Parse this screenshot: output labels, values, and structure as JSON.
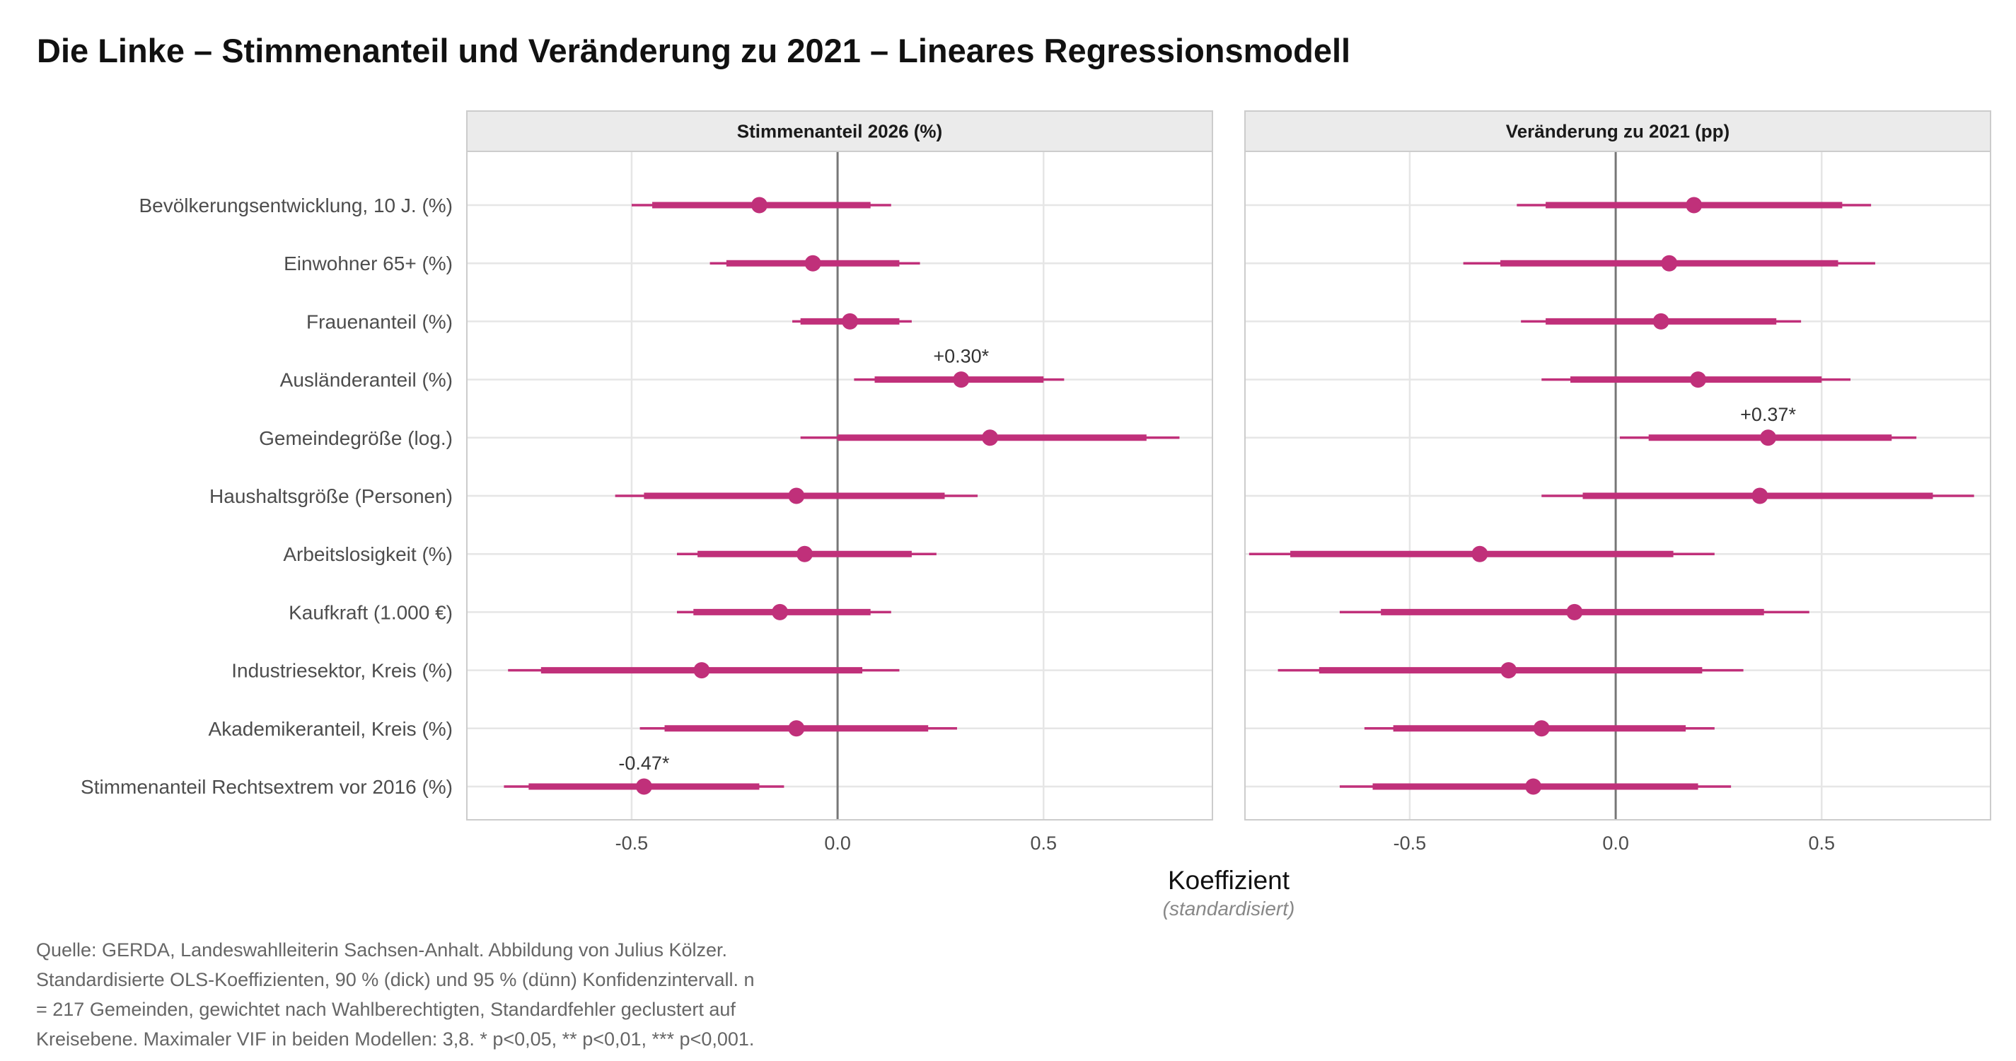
{
  "title": "Die Linke – Stimmenanteil und Veränderung zu 2021 – Lineares Regressionsmodell",
  "chart_data": {
    "type": "coefficient-plot",
    "xlabel": "Koeffizient",
    "xlabel_sub": "(standardisiert)",
    "xlim": [
      -0.9,
      0.91
    ],
    "xticks": [
      -0.5,
      0.0,
      0.5
    ],
    "xtick_labels": [
      "-0.5",
      "0.0",
      "0.5"
    ],
    "zero_line": 0,
    "grid": true,
    "point_color": "#c0307a",
    "terms": [
      "Bevölkerungsentwicklung, 10 J. (%)",
      "Einwohner 65+ (%)",
      "Frauenanteil (%)",
      "Ausländeranteil (%)",
      "Gemeindegröße (log.)",
      "Haushaltsgröße (Personen)",
      "Arbeitslosigkeit (%)",
      "Kaufkraft (1.000 €)",
      "Industriesektor, Kreis (%)",
      "Akademikeranteil, Kreis (%)",
      "Stimmenanteil Rechtsextrem vor 2016 (%)"
    ],
    "panels": [
      {
        "name": "Stimmenanteil 2026 (%)",
        "estimates": [
          -0.19,
          -0.06,
          0.03,
          0.3,
          0.37,
          -0.1,
          -0.08,
          -0.14,
          -0.33,
          -0.1,
          -0.47
        ],
        "ci90": [
          [
            -0.45,
            0.08
          ],
          [
            -0.27,
            0.15
          ],
          [
            -0.09,
            0.15
          ],
          [
            0.09,
            0.5
          ],
          [
            0.0,
            0.75
          ],
          [
            -0.47,
            0.26
          ],
          [
            -0.34,
            0.18
          ],
          [
            -0.35,
            0.08
          ],
          [
            -0.72,
            0.06
          ],
          [
            -0.42,
            0.22
          ],
          [
            -0.75,
            -0.19
          ]
        ],
        "ci95": [
          [
            -0.5,
            0.13
          ],
          [
            -0.31,
            0.2
          ],
          [
            -0.11,
            0.18
          ],
          [
            0.04,
            0.55
          ],
          [
            -0.09,
            0.83
          ],
          [
            -0.54,
            0.34
          ],
          [
            -0.39,
            0.24
          ],
          [
            -0.39,
            0.13
          ],
          [
            -0.8,
            0.15
          ],
          [
            -0.48,
            0.29
          ],
          [
            -0.81,
            -0.13
          ]
        ],
        "annotations": [
          {
            "term_index": 3,
            "label": "+0.30*"
          },
          {
            "term_index": 10,
            "label": "-0.47*"
          }
        ]
      },
      {
        "name": "Veränderung zu 2021 (pp)",
        "estimates": [
          0.19,
          0.13,
          0.11,
          0.2,
          0.37,
          0.35,
          -0.33,
          -0.1,
          -0.26,
          -0.18,
          -0.2
        ],
        "ci90": [
          [
            -0.17,
            0.55
          ],
          [
            -0.28,
            0.54
          ],
          [
            -0.17,
            0.39
          ],
          [
            -0.11,
            0.5
          ],
          [
            0.08,
            0.67
          ],
          [
            -0.08,
            0.77
          ],
          [
            -0.79,
            0.14
          ],
          [
            -0.57,
            0.36
          ],
          [
            -0.72,
            0.21
          ],
          [
            -0.54,
            0.17
          ],
          [
            -0.59,
            0.2
          ]
        ],
        "ci95": [
          [
            -0.24,
            0.62
          ],
          [
            -0.37,
            0.63
          ],
          [
            -0.23,
            0.45
          ],
          [
            -0.18,
            0.57
          ],
          [
            0.01,
            0.73
          ],
          [
            -0.18,
            0.87
          ],
          [
            -0.89,
            0.24
          ],
          [
            -0.67,
            0.47
          ],
          [
            -0.82,
            0.31
          ],
          [
            -0.61,
            0.24
          ],
          [
            -0.67,
            0.28
          ]
        ],
        "annotations": [
          {
            "term_index": 4,
            "label": "+0.37*"
          }
        ]
      }
    ]
  },
  "caption_lines": [
    "Quelle: GERDA, Landeswahlleiterin Sachsen-Anhalt. Abbildung von Julius Kölzer.",
    "Standardisierte OLS-Koeffizienten, 90 % (dick) und 95 % (dünn) Konfidenzintervall. n",
    "= 217 Gemeinden, gewichtet nach Wahlberechtigten, Standardfehler geclustert auf",
    "Kreisebene. Maximaler VIF in beiden Modellen: 3,8. * p<0,05, ** p<0,01, *** p<0,001."
  ]
}
